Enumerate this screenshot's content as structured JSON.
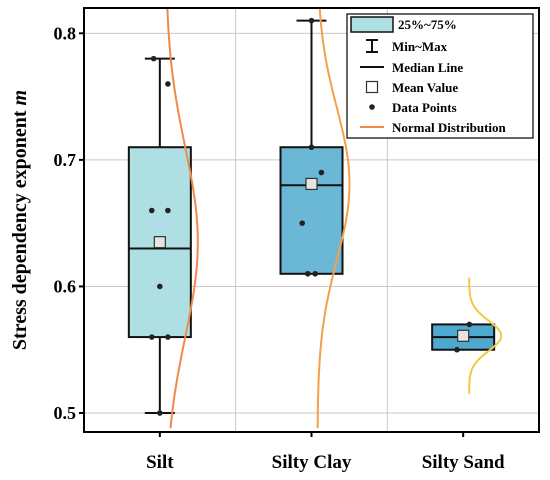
{
  "chart_data": {
    "type": "box",
    "ylabel": "Stress dependency exponent ",
    "ylabel_symbol": "m",
    "ylim": [
      0.485,
      0.82
    ],
    "yticks": [
      0.5,
      0.6,
      0.7,
      0.8
    ],
    "ytick_labels": [
      "0.5",
      "0.6",
      "0.7",
      "0.8"
    ],
    "categories": [
      "Silt",
      "Silty Clay",
      "Silty Sand"
    ],
    "grid": true,
    "legend_position": "top-right",
    "legend": [
      "25%~75%",
      "Min~Max",
      "Median Line",
      "Mean Value",
      "Data Points",
      "Normal Distribution"
    ],
    "series": [
      {
        "category": "Silt",
        "min": 0.5,
        "q1": 0.56,
        "median": 0.63,
        "q3": 0.71,
        "max": 0.78,
        "mean": 0.635,
        "box_color": "#aee0e3",
        "curve_color": "#f08a4b",
        "points": [
          {
            "x": -0.1,
            "y": 0.78
          },
          {
            "x": 0.13,
            "y": 0.76
          },
          {
            "x": -0.13,
            "y": 0.66
          },
          {
            "x": 0.13,
            "y": 0.66
          },
          {
            "x": 0.0,
            "y": 0.6
          },
          {
            "x": -0.13,
            "y": 0.56
          },
          {
            "x": 0.13,
            "y": 0.56
          },
          {
            "x": 0.0,
            "y": 0.5
          }
        ],
        "normal": {
          "mu": 0.635,
          "sigma": 0.075,
          "y_range": [
            0.488,
            0.82
          ]
        }
      },
      {
        "category": "Silty Clay",
        "min": 0.61,
        "q1": 0.61,
        "median": 0.68,
        "q3": 0.71,
        "max": 0.81,
        "mean": 0.681,
        "box_color": "#6bb8d6",
        "curve_color": "#f5a04a",
        "points": [
          {
            "x": 0.0,
            "y": 0.81
          },
          {
            "x": 0.0,
            "y": 0.71
          },
          {
            "x": 0.16,
            "y": 0.69
          },
          {
            "x": -0.15,
            "y": 0.65
          },
          {
            "x": -0.06,
            "y": 0.61
          },
          {
            "x": 0.06,
            "y": 0.61
          }
        ],
        "normal": {
          "mu": 0.681,
          "sigma": 0.06,
          "y_range": [
            0.488,
            0.82
          ]
        }
      },
      {
        "category": "Silty Sand",
        "min": 0.55,
        "q1": 0.55,
        "median": 0.56,
        "q3": 0.57,
        "max": 0.57,
        "mean": 0.561,
        "box_color": "#4fa8cf",
        "curve_color": "#f5c842",
        "points": [
          {
            "x": -0.1,
            "y": 0.55
          },
          {
            "x": 0.1,
            "y": 0.57
          },
          {
            "x": 0.0,
            "y": 0.56
          }
        ],
        "normal": {
          "mu": 0.561,
          "sigma": 0.012,
          "y_range": [
            0.515,
            0.607
          ]
        }
      }
    ]
  }
}
